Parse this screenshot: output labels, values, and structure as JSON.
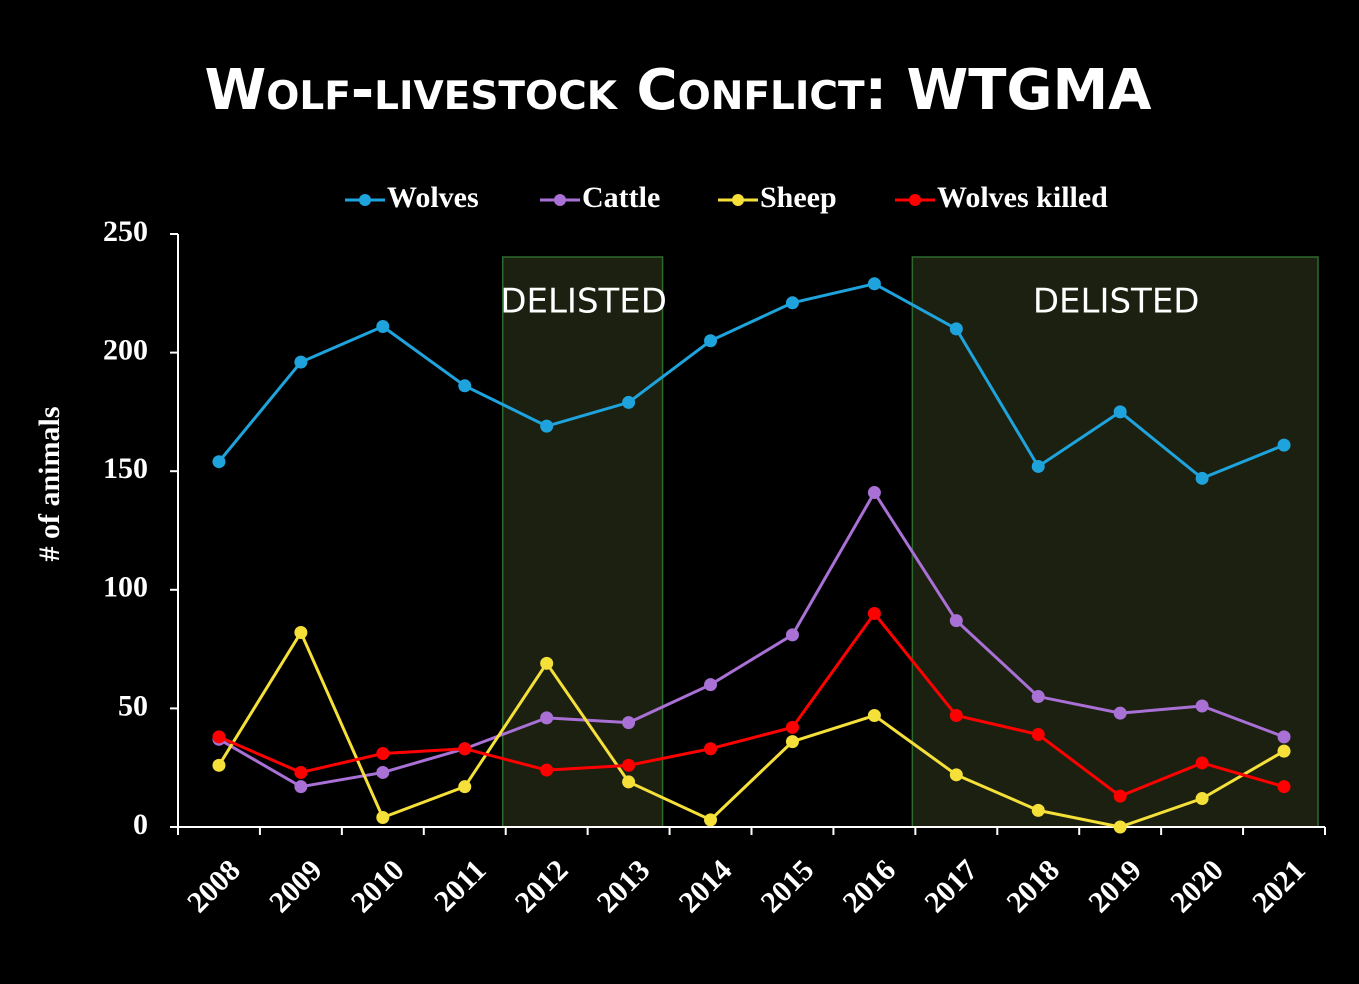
{
  "chart_data": {
    "type": "line",
    "title": "Wolf-livestock Conflict: WTGMA",
    "y_label": "# of animals",
    "categories": [
      "2008",
      "2009",
      "2010",
      "2011",
      "2012",
      "2013",
      "2014",
      "2015",
      "2016",
      "2017",
      "2018",
      "2019",
      "2020",
      "2021"
    ],
    "series": [
      {
        "name": "Wolves",
        "color": "#1fa3dc",
        "values": [
          154,
          196,
          211,
          186,
          169,
          179,
          205,
          221,
          229,
          210,
          152,
          175,
          147,
          161
        ]
      },
      {
        "name": "Cattle",
        "color": "#a970d6",
        "values": [
          37,
          17,
          23,
          33,
          46,
          44,
          60,
          81,
          141,
          87,
          55,
          48,
          51,
          38
        ]
      },
      {
        "name": "Sheep",
        "color": "#f5e03a",
        "values": [
          26,
          82,
          4,
          17,
          69,
          19,
          3,
          36,
          47,
          22,
          7,
          0,
          12,
          32
        ]
      },
      {
        "name": "Wolves killed",
        "color": "#ff0000",
        "values": [
          38,
          23,
          31,
          33,
          24,
          26,
          33,
          42,
          90,
          47,
          39,
          13,
          27,
          17
        ]
      }
    ],
    "annotations": [
      {
        "text": "DELISTED",
        "start": "2012",
        "end": "2013"
      },
      {
        "text": "DELISTED",
        "start": "2017",
        "end": "2021"
      }
    ],
    "ylim": [
      0,
      250
    ],
    "yticks": [
      0,
      50,
      100,
      150,
      200,
      250
    ],
    "legend": "top"
  }
}
